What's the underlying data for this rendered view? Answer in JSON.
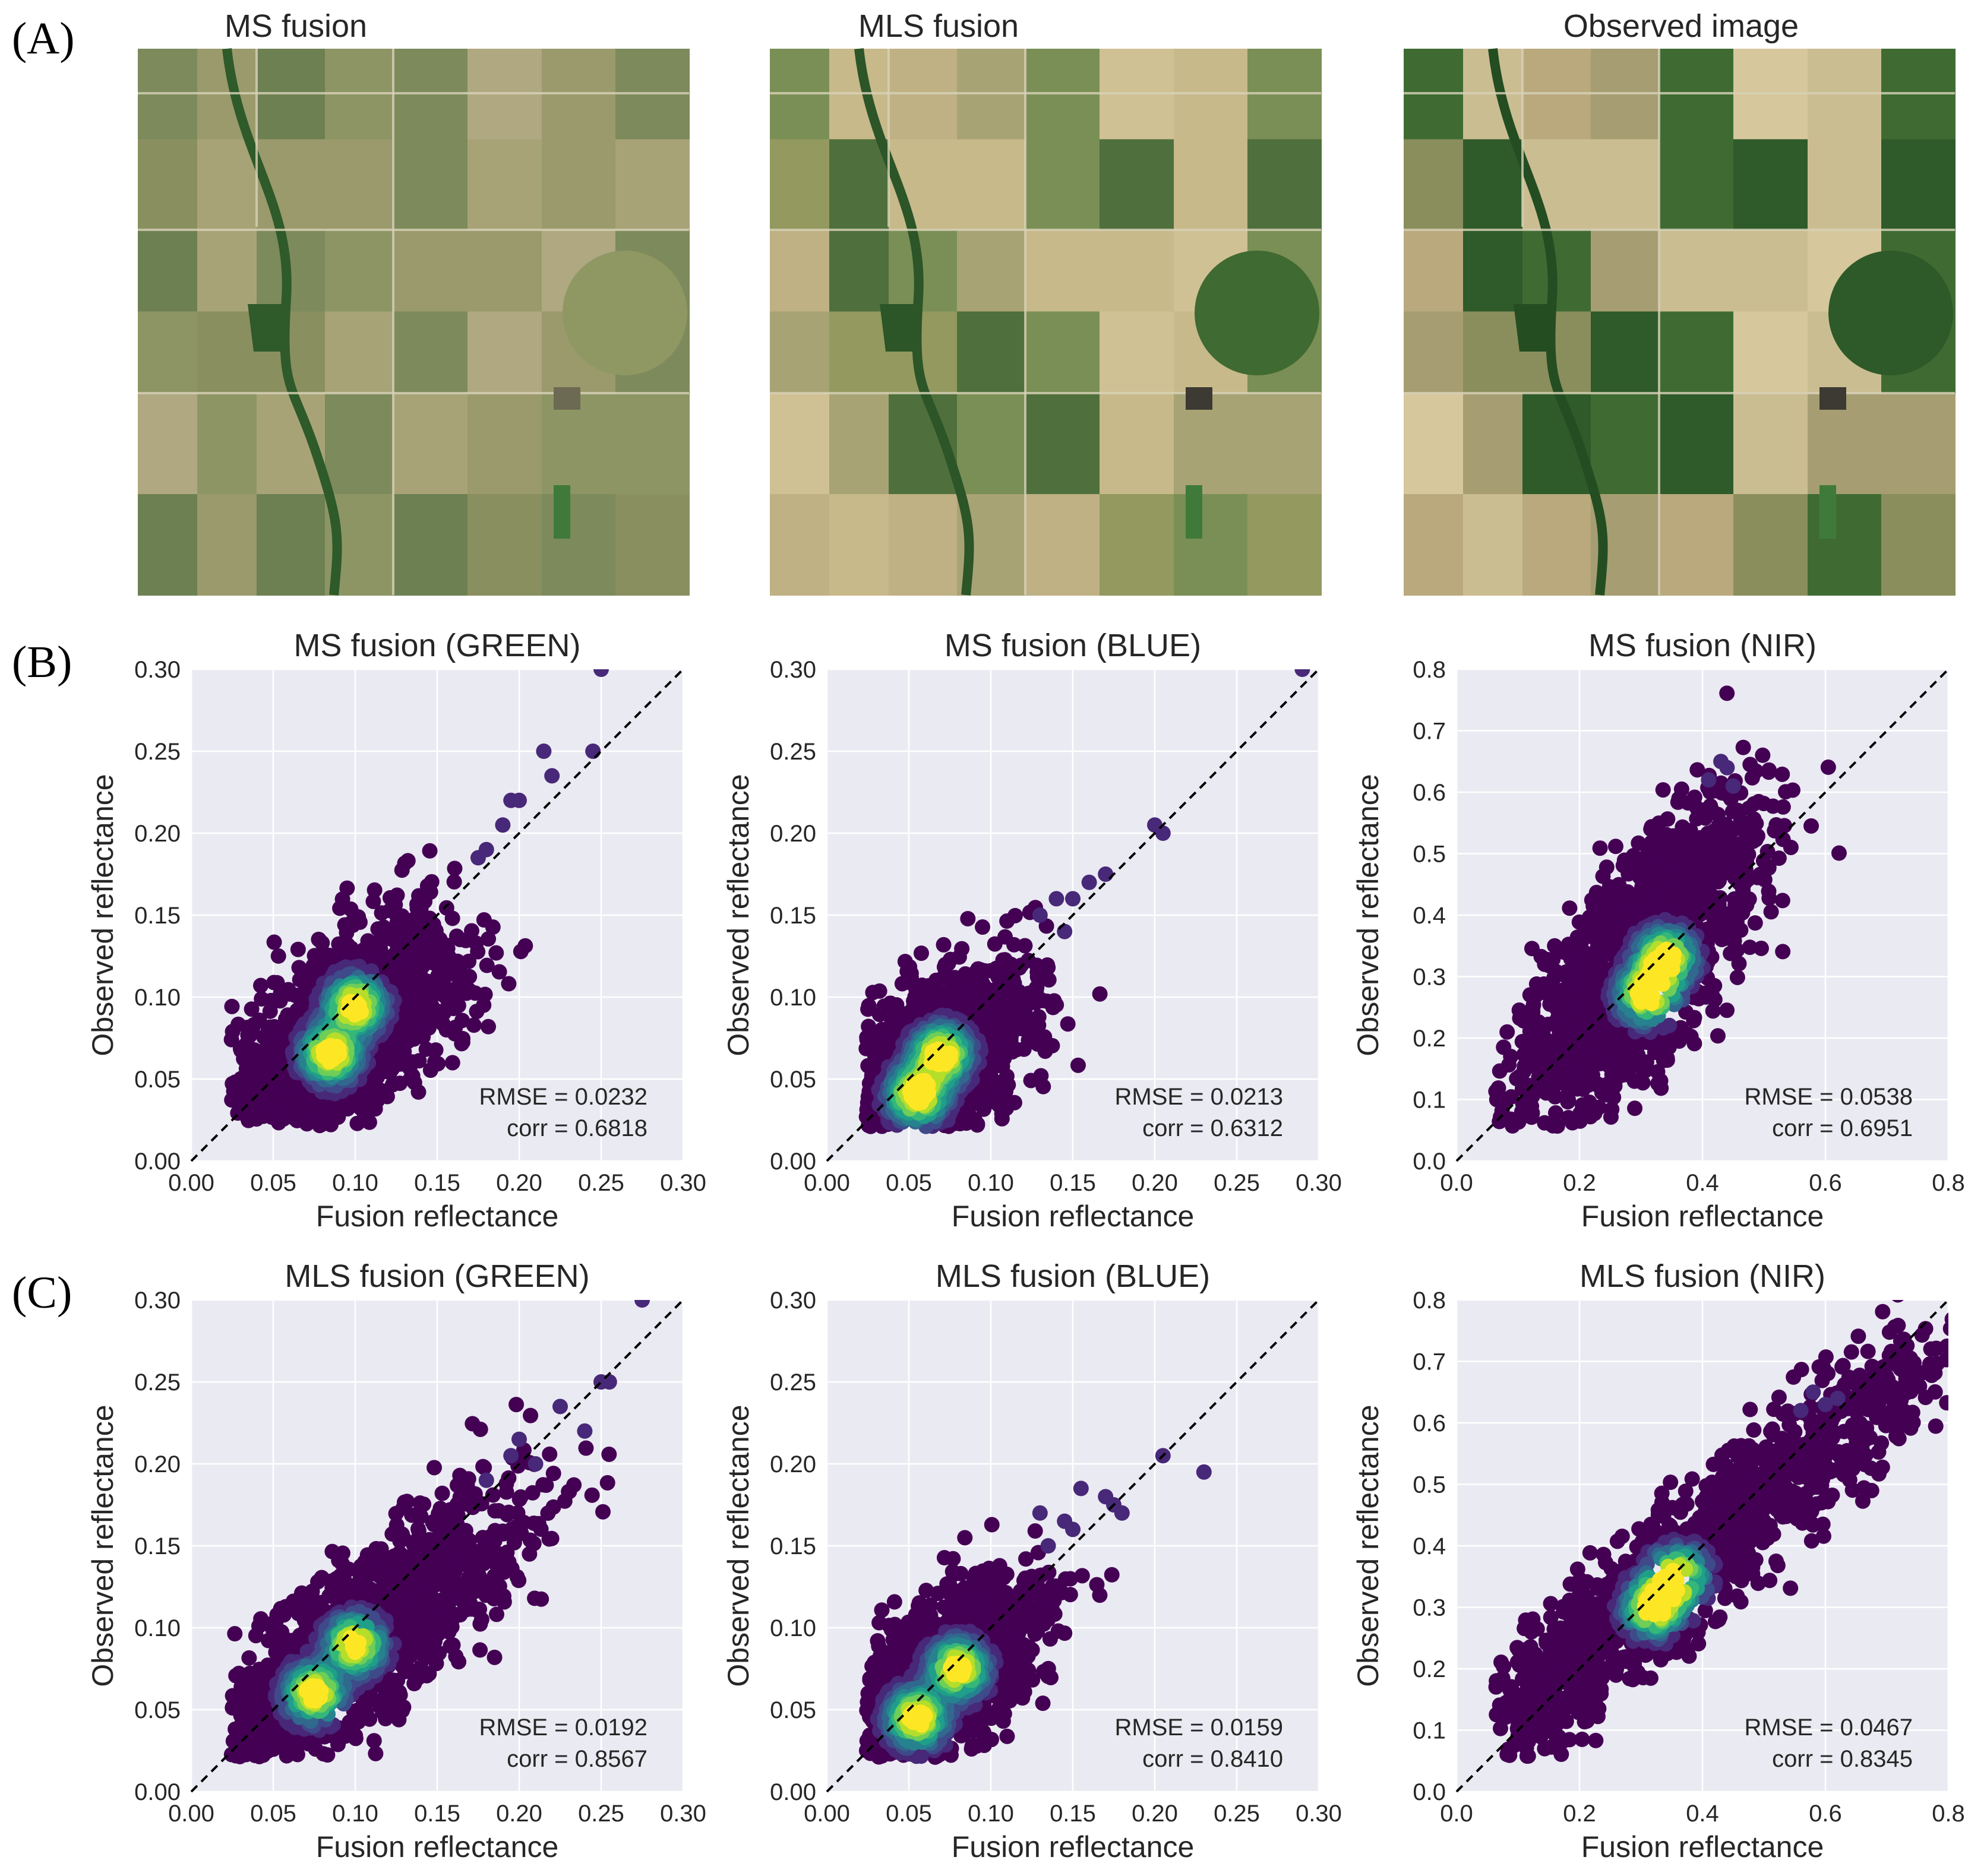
{
  "figure": {
    "panel_labels": [
      "(A)",
      "(B)",
      "(C)"
    ],
    "images": [
      {
        "title": "MS fusion"
      },
      {
        "title": "MLS fusion"
      },
      {
        "title": "Observed image"
      }
    ]
  },
  "colors": {
    "axes_bg": "#EAEAF2",
    "grid": "#FFFFFF",
    "viridis_low": "#440154",
    "viridis_mid": "#21918C",
    "viridis_high": "#FDE725",
    "identity_line": "#000000"
  },
  "chart_data": [
    {
      "type": "scatter",
      "title": "MS fusion (GREEN)",
      "xlabel": "Fusion reflectance",
      "ylabel": "Observed reflectance",
      "xlim": [
        0,
        0.3
      ],
      "ylim": [
        0,
        0.3
      ],
      "xticks": [
        "0.00",
        "0.05",
        "0.10",
        "0.15",
        "0.20",
        "0.25",
        "0.30"
      ],
      "yticks": [
        "0.00",
        "0.05",
        "0.10",
        "0.15",
        "0.20",
        "0.25",
        "0.30"
      ],
      "annotation": [
        "RMSE = 0.0232",
        "corr = 0.6818"
      ],
      "cloud": {
        "cx": 0.09,
        "cy": 0.075,
        "rx": 0.045,
        "ry": 0.022,
        "angle": 45,
        "spread": 0.03
      },
      "dense_core": [
        [
          0.085,
          0.065
        ],
        [
          0.1,
          0.095
        ]
      ],
      "outliers": [
        [
          0.25,
          0.3
        ],
        [
          0.245,
          0.25
        ],
        [
          0.215,
          0.25
        ],
        [
          0.22,
          0.235
        ],
        [
          0.2,
          0.22
        ],
        [
          0.195,
          0.22
        ],
        [
          0.19,
          0.205
        ],
        [
          0.18,
          0.19
        ],
        [
          0.175,
          0.185
        ]
      ]
    },
    {
      "type": "scatter",
      "title": "MS fusion (BLUE)",
      "xlabel": "Fusion reflectance",
      "ylabel": "Observed reflectance",
      "xlim": [
        0,
        0.3
      ],
      "ylim": [
        0,
        0.3
      ],
      "xticks": [
        "0.00",
        "0.05",
        "0.10",
        "0.15",
        "0.20",
        "0.25",
        "0.30"
      ],
      "yticks": [
        "0.00",
        "0.05",
        "0.10",
        "0.15",
        "0.20",
        "0.25",
        "0.30"
      ],
      "annotation": [
        "RMSE = 0.0213",
        "corr = 0.6312"
      ],
      "cloud": {
        "cx": 0.06,
        "cy": 0.055,
        "rx": 0.04,
        "ry": 0.02,
        "angle": 45,
        "spread": 0.028
      },
      "dense_core": [
        [
          0.055,
          0.04
        ],
        [
          0.07,
          0.065
        ]
      ],
      "outliers": [
        [
          0.29,
          0.3
        ],
        [
          0.2,
          0.205
        ],
        [
          0.205,
          0.2
        ],
        [
          0.17,
          0.175
        ],
        [
          0.16,
          0.17
        ],
        [
          0.15,
          0.16
        ],
        [
          0.14,
          0.16
        ],
        [
          0.13,
          0.15
        ],
        [
          0.145,
          0.14
        ]
      ]
    },
    {
      "type": "scatter",
      "title": "MS fusion (NIR)",
      "xlabel": "Fusion reflectance",
      "ylabel": "Observed reflectance",
      "xlim": [
        0,
        0.8
      ],
      "ylim": [
        0,
        0.8
      ],
      "xticks": [
        "0.0",
        "0.2",
        "0.4",
        "0.6",
        "0.8"
      ],
      "yticks": [
        "0.0",
        "0.1",
        "0.2",
        "0.3",
        "0.4",
        "0.5",
        "0.6",
        "0.7",
        "0.8"
      ],
      "annotation": [
        "RMSE = 0.0538",
        "corr = 0.6951"
      ],
      "cloud": {
        "cx": 0.29,
        "cy": 0.31,
        "rx": 0.16,
        "ry": 0.055,
        "angle": 55,
        "spread": 0.09
      },
      "dense_core": [
        [
          0.34,
          0.33
        ],
        [
          0.31,
          0.27
        ]
      ],
      "outliers": [
        [
          0.43,
          0.65
        ],
        [
          0.44,
          0.64
        ],
        [
          0.41,
          0.62
        ],
        [
          0.45,
          0.61
        ]
      ]
    },
    {
      "type": "scatter",
      "title": "MLS fusion (GREEN)",
      "xlabel": "Fusion reflectance",
      "ylabel": "Observed reflectance",
      "xlim": [
        0,
        0.3
      ],
      "ylim": [
        0,
        0.3
      ],
      "xticks": [
        "0.00",
        "0.05",
        "0.10",
        "0.15",
        "0.20",
        "0.25",
        "0.30"
      ],
      "yticks": [
        "0.00",
        "0.05",
        "0.10",
        "0.15",
        "0.20",
        "0.25",
        "0.30"
      ],
      "annotation": [
        "RMSE = 0.0192",
        "corr = 0.8567"
      ],
      "cloud": {
        "cx": 0.095,
        "cy": 0.085,
        "rx": 0.07,
        "ry": 0.02,
        "angle": 42,
        "spread": 0.03
      },
      "dense_core": [
        [
          0.075,
          0.06
        ],
        [
          0.1,
          0.09
        ]
      ],
      "outliers": [
        [
          0.275,
          0.3
        ],
        [
          0.255,
          0.25
        ],
        [
          0.25,
          0.25
        ],
        [
          0.24,
          0.22
        ],
        [
          0.225,
          0.235
        ],
        [
          0.2,
          0.215
        ],
        [
          0.21,
          0.2
        ],
        [
          0.195,
          0.205
        ],
        [
          0.18,
          0.19
        ]
      ]
    },
    {
      "type": "scatter",
      "title": "MLS fusion (BLUE)",
      "xlabel": "Fusion reflectance",
      "ylabel": "Observed reflectance",
      "xlim": [
        0,
        0.3
      ],
      "ylim": [
        0,
        0.3
      ],
      "xticks": [
        "0.00",
        "0.05",
        "0.10",
        "0.15",
        "0.20",
        "0.25",
        "0.30"
      ],
      "yticks": [
        "0.00",
        "0.05",
        "0.10",
        "0.15",
        "0.20",
        "0.25",
        "0.30"
      ],
      "annotation": [
        "RMSE = 0.0159",
        "corr = 0.8410"
      ],
      "cloud": {
        "cx": 0.06,
        "cy": 0.06,
        "rx": 0.045,
        "ry": 0.02,
        "angle": 45,
        "spread": 0.026
      },
      "dense_core": [
        [
          0.055,
          0.045
        ],
        [
          0.08,
          0.075
        ]
      ],
      "outliers": [
        [
          0.23,
          0.195
        ],
        [
          0.205,
          0.205
        ],
        [
          0.18,
          0.17
        ],
        [
          0.175,
          0.175
        ],
        [
          0.17,
          0.18
        ],
        [
          0.155,
          0.185
        ],
        [
          0.15,
          0.16
        ],
        [
          0.145,
          0.165
        ],
        [
          0.13,
          0.17
        ],
        [
          0.135,
          0.15
        ]
      ]
    },
    {
      "type": "scatter",
      "title": "MLS fusion (NIR)",
      "xlabel": "Fusion reflectance",
      "ylabel": "Observed reflectance",
      "xlim": [
        0,
        0.8
      ],
      "ylim": [
        0,
        0.8
      ],
      "xticks": [
        "0.0",
        "0.2",
        "0.4",
        "0.6",
        "0.8"
      ],
      "yticks": [
        "0.0",
        "0.1",
        "0.2",
        "0.3",
        "0.4",
        "0.5",
        "0.6",
        "0.7",
        "0.8"
      ],
      "annotation": [
        "RMSE = 0.0467",
        "corr = 0.8345"
      ],
      "cloud": {
        "cx": 0.33,
        "cy": 0.33,
        "rx": 0.32,
        "ry": 0.045,
        "angle": 42,
        "spread": 0.07
      },
      "dense_core": [
        [
          0.32,
          0.3
        ],
        [
          0.36,
          0.35
        ]
      ],
      "outliers": [
        [
          0.58,
          0.65
        ],
        [
          0.62,
          0.64
        ],
        [
          0.6,
          0.63
        ],
        [
          0.56,
          0.62
        ]
      ]
    }
  ]
}
